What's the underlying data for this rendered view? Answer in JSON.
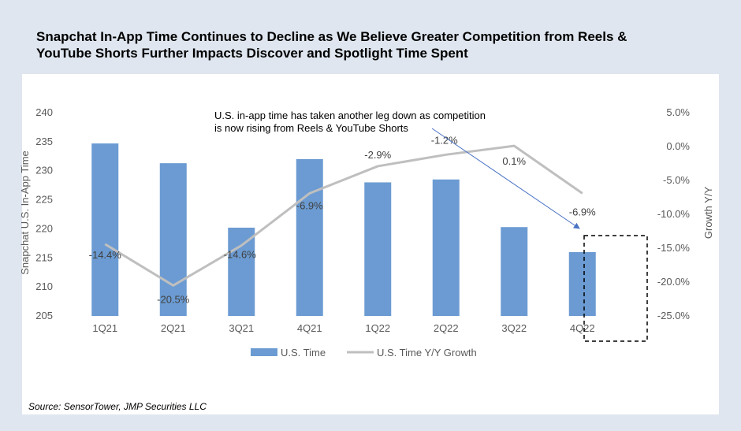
{
  "title_line1": "Snapchat In-App Time Continues to Decline as We Believe Greater Competition from Reels &",
  "title_line2": "YouTube Shorts Further Impacts Discover and Spotlight Time Spent",
  "source": "Source: SensorTower, JMP Securities LLC",
  "colors": {
    "bar": "#6b9bd2",
    "line": "#bfbfbf",
    "text": "#595959",
    "arrow": "#4a72c4",
    "box": "#000000"
  },
  "chart_data": {
    "type": "bar+line",
    "categories": [
      "1Q21",
      "2Q21",
      "3Q21",
      "4Q21",
      "1Q22",
      "2Q22",
      "3Q22",
      "4Q22"
    ],
    "series": [
      {
        "name": "U.S. Time",
        "type": "bar",
        "axis": "left",
        "values": [
          234.7,
          231.3,
          220.2,
          232.0,
          228.0,
          228.5,
          220.3,
          216.0
        ]
      },
      {
        "name": "U.S. Time Y/Y Growth",
        "type": "line",
        "axis": "right",
        "values": [
          -14.4,
          -20.5,
          -14.6,
          -6.9,
          -2.9,
          -1.2,
          0.1,
          -6.9
        ]
      }
    ],
    "growth_labels": [
      "-14.4%",
      "-20.5%",
      "-14.6%",
      "-6.9%",
      "-2.9%",
      "-1.2%",
      "0.1%",
      "-6.9%"
    ],
    "left_axis": {
      "label": "Snapchat U.S. In-App Time",
      "min": 205,
      "max": 240,
      "ticks": [
        "205",
        "210",
        "215",
        "220",
        "225",
        "230",
        "235",
        "240"
      ]
    },
    "right_axis": {
      "label": "Growth Y/Y",
      "min": -25,
      "max": 5,
      "ticks": [
        "-25.0%",
        "-20.0%",
        "-15.0%",
        "-10.0%",
        "-5.0%",
        "0.0%",
        "5.0%"
      ]
    },
    "legend": [
      "U.S. Time",
      "U.S. Time Y/Y Growth"
    ],
    "annotation_line1": "U.S. in-app time has taken another leg down as competition",
    "annotation_line2": "is now rising from Reels & YouTube Shorts",
    "highlight_category": "4Q22"
  }
}
